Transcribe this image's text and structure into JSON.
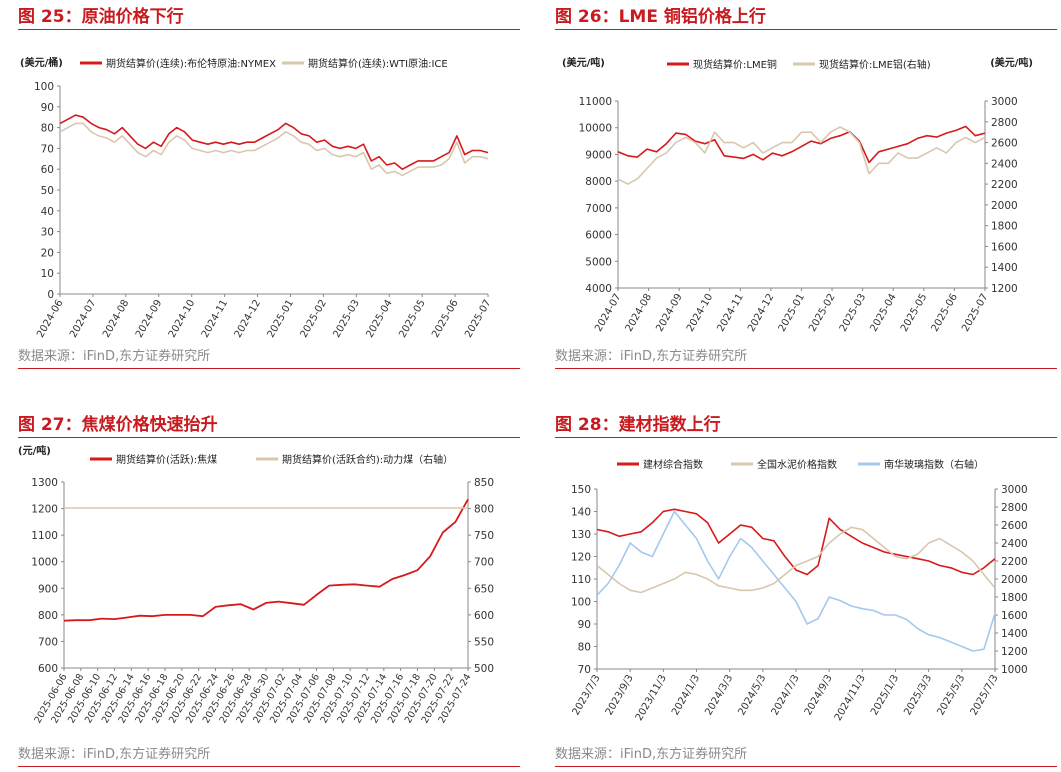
{
  "source_text": "数据来源：iFinD,东方证券研究所",
  "panels": [
    {
      "title": "图 25：原油价格下行"
    },
    {
      "title": "图 26：LME 铜铝价格上行"
    },
    {
      "title": "图 27：焦煤价格快速抬升"
    },
    {
      "title": "图 28：建材指数上行"
    }
  ],
  "chart_data": [
    {
      "type": "line",
      "title": "图 25：原油价格下行",
      "ylabel": "(美元/桶)",
      "ylim": [
        0,
        100
      ],
      "yticks": [
        0,
        10,
        20,
        30,
        40,
        50,
        60,
        70,
        80,
        90,
        100
      ],
      "x_labels": [
        "2024-06",
        "2024-07",
        "2024-08",
        "2024-09",
        "2024-10",
        "2024-11",
        "2024-12",
        "2025-01",
        "2025-02",
        "2025-03",
        "2025-04",
        "2025-05",
        "2025-06",
        "2025-07"
      ],
      "series": [
        {
          "name": "期货结算价(连续):布伦特原油:NYMEX",
          "color": "#d7191c",
          "width": 1.6,
          "axis": "left",
          "values": [
            82,
            84,
            86,
            85,
            82,
            80,
            79,
            77,
            80,
            76,
            72,
            70,
            73,
            71,
            77,
            80,
            78,
            74,
            73,
            72,
            73,
            72,
            73,
            72,
            73,
            73,
            75,
            77,
            79,
            82,
            80,
            77,
            76,
            73,
            74,
            71,
            70,
            71,
            70,
            72,
            64,
            66,
            62,
            63,
            60,
            62,
            64,
            64,
            64,
            66,
            68,
            76,
            67,
            69,
            69,
            68
          ]
        },
        {
          "name": "期货结算价(连续):WTI原油:ICE",
          "color": "#d9c7ad",
          "width": 1.6,
          "axis": "left",
          "values": [
            78,
            80,
            82,
            82,
            78,
            76,
            75,
            73,
            76,
            72,
            68,
            66,
            69,
            67,
            73,
            76,
            74,
            70,
            69,
            68,
            69,
            68,
            69,
            68,
            69,
            69,
            71,
            73,
            75,
            78,
            76,
            73,
            72,
            69,
            70,
            67,
            66,
            67,
            66,
            68,
            60,
            62,
            58,
            59,
            57,
            59,
            61,
            61,
            61,
            62,
            65,
            73,
            63,
            66,
            66,
            65
          ]
        }
      ]
    },
    {
      "type": "line",
      "title": "图 26：LME 铜铝价格上行",
      "ylabel": "(美元/吨)",
      "y2label": "(美元/吨)",
      "ylim": [
        4000,
        11000
      ],
      "y2lim": [
        1200,
        3000
      ],
      "yticks": [
        4000,
        5000,
        6000,
        7000,
        8000,
        9000,
        10000,
        11000
      ],
      "y2ticks": [
        1200,
        1400,
        1600,
        1800,
        2000,
        2200,
        2400,
        2600,
        2800,
        3000
      ],
      "x_labels": [
        "2024-07",
        "2024-08",
        "2024-09",
        "2024-10",
        "2024-11",
        "2024-12",
        "2025-01",
        "2025-02",
        "2025-03",
        "2025-04",
        "2025-05",
        "2025-06",
        "2025-07"
      ],
      "series": [
        {
          "name": "现货结算价:LME铜",
          "color": "#d7191c",
          "width": 1.6,
          "axis": "left",
          "values": [
            9100,
            8950,
            8900,
            9200,
            9100,
            9400,
            9800,
            9750,
            9500,
            9400,
            9550,
            8950,
            8900,
            8850,
            9000,
            8800,
            9050,
            8950,
            9100,
            9300,
            9500,
            9400,
            9600,
            9700,
            9850,
            9500,
            8700,
            9100,
            9200,
            9300,
            9400,
            9600,
            9700,
            9650,
            9800,
            9900,
            10050,
            9700,
            9800
          ]
        },
        {
          "name": "现货结算价:LME铝(右轴)",
          "color": "#d9c7ad",
          "width": 1.6,
          "axis": "right",
          "values": [
            2250,
            2200,
            2250,
            2350,
            2450,
            2500,
            2600,
            2650,
            2600,
            2500,
            2700,
            2600,
            2600,
            2550,
            2600,
            2500,
            2550,
            2600,
            2600,
            2700,
            2700,
            2600,
            2700,
            2750,
            2700,
            2600,
            2300,
            2400,
            2400,
            2500,
            2450,
            2450,
            2500,
            2550,
            2500,
            2600,
            2650,
            2600,
            2650
          ]
        }
      ]
    },
    {
      "type": "line",
      "title": "图 27：焦煤价格快速抬升",
      "ylabel": "(元/吨)",
      "ylim": [
        600,
        1300
      ],
      "y2lim": [
        500,
        850
      ],
      "yticks": [
        600,
        700,
        800,
        900,
        1000,
        1100,
        1200,
        1300
      ],
      "y2ticks": [
        500,
        550,
        600,
        650,
        700,
        750,
        800,
        850
      ],
      "x_labels": [
        "2025-06-06",
        "2025-06-08",
        "2025-06-10",
        "2025-06-12",
        "2025-06-14",
        "2025-06-16",
        "2025-06-18",
        "2025-06-20",
        "2025-06-22",
        "2025-06-24",
        "2025-06-26",
        "2025-06-28",
        "2025-06-30",
        "2025-07-02",
        "2025-07-04",
        "2025-07-06",
        "2025-07-08",
        "2025-07-10",
        "2025-07-12",
        "2025-07-14",
        "2025-07-16",
        "2025-07-18",
        "2025-07-20",
        "2025-07-22",
        "2025-07-24"
      ],
      "series": [
        {
          "name": "期货结算价(活跃):焦煤",
          "color": "#d7191c",
          "width": 1.8,
          "axis": "left",
          "values": [
            778,
            780,
            780,
            786,
            784,
            790,
            797,
            795,
            800,
            800,
            800,
            795,
            830,
            836,
            840,
            820,
            845,
            850,
            844,
            838,
            875,
            910,
            913,
            915,
            910,
            906,
            935,
            950,
            968,
            1020,
            1110,
            1150,
            1235
          ]
        },
        {
          "name": "期货结算价(活跃合约):动力煤（右轴）",
          "color": "#d9c7ad",
          "width": 1.6,
          "axis": "right",
          "values": [
            801,
            801,
            801,
            801,
            801,
            801,
            801,
            801,
            801,
            801,
            801,
            801,
            801,
            801,
            801,
            801,
            801,
            801,
            801,
            801,
            801,
            801,
            801,
            801,
            801,
            801,
            801,
            801,
            801,
            801,
            801,
            801,
            801
          ]
        }
      ]
    },
    {
      "type": "line",
      "title": "图 28：建材指数上行",
      "ylim": [
        70,
        150
      ],
      "y2lim": [
        1000,
        3000
      ],
      "yticks": [
        70,
        80,
        90,
        100,
        110,
        120,
        130,
        140,
        150
      ],
      "y2ticks": [
        1000,
        1200,
        1400,
        1600,
        1800,
        2000,
        2200,
        2400,
        2600,
        2800,
        3000
      ],
      "x_labels": [
        "2023/7/3",
        "2023/9/3",
        "2023/11/3",
        "2024/1/3",
        "2024/3/3",
        "2024/5/3",
        "2024/7/3",
        "2024/9/3",
        "2024/11/3",
        "2025/1/3",
        "2025/3/3",
        "2025/5/3",
        "2025/7/3"
      ],
      "series": [
        {
          "name": "建材综合指数",
          "color": "#d7191c",
          "width": 1.6,
          "axis": "left",
          "values": [
            132,
            131,
            129,
            130,
            131,
            135,
            140,
            141,
            140,
            139,
            135,
            126,
            130,
            134,
            133,
            128,
            127,
            120,
            114,
            112,
            116,
            137,
            132,
            129,
            126,
            124,
            122,
            121,
            120,
            119,
            118,
            116,
            115,
            113,
            112,
            115,
            119
          ]
        },
        {
          "name": "全国水泥价格指数",
          "color": "#d9c7ad",
          "width": 1.6,
          "axis": "left",
          "values": [
            116,
            112,
            108,
            105,
            104,
            106,
            108,
            110,
            113,
            112,
            110,
            107,
            106,
            105,
            105,
            106,
            108,
            112,
            116,
            118,
            120,
            126,
            130,
            133,
            132,
            128,
            124,
            120,
            119,
            121,
            126,
            128,
            125,
            122,
            118,
            112,
            106
          ]
        },
        {
          "name": "南华玻璃指数（右轴）",
          "color": "#a5c8f0",
          "width": 1.6,
          "axis": "right",
          "values": [
            1820,
            1950,
            2150,
            2400,
            2300,
            2250,
            2500,
            2750,
            2600,
            2450,
            2200,
            2000,
            2250,
            2450,
            2350,
            2200,
            2050,
            1900,
            1750,
            1500,
            1560,
            1800,
            1760,
            1700,
            1670,
            1650,
            1600,
            1600,
            1550,
            1450,
            1380,
            1350,
            1300,
            1250,
            1200,
            1220,
            1620
          ]
        }
      ]
    }
  ]
}
